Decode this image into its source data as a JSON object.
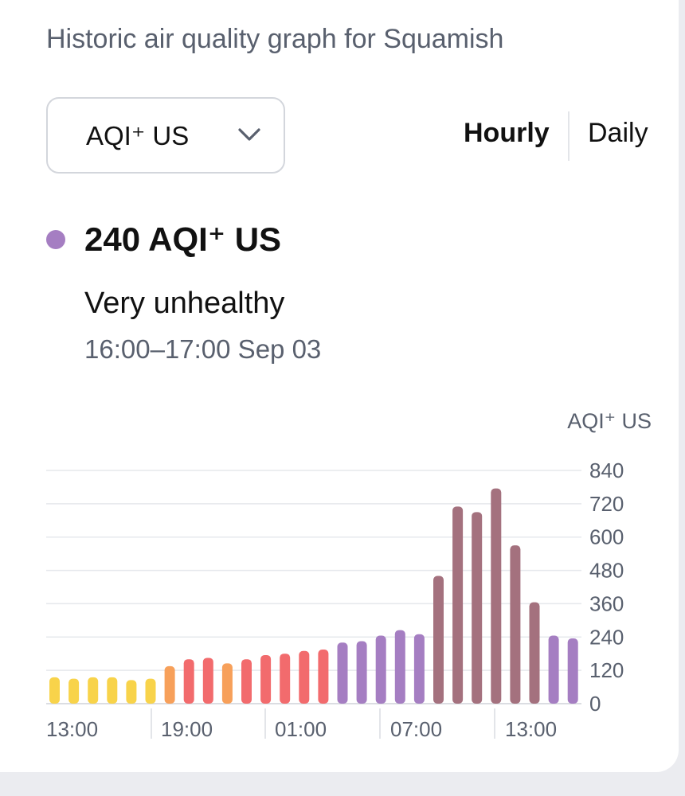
{
  "header": {
    "subtitle": "Historic air quality graph for Squamish"
  },
  "controls": {
    "pollutant": "AQI⁺ US",
    "toggle": {
      "hourly": "Hourly",
      "daily": "Daily",
      "selected": "Hourly"
    }
  },
  "selected": {
    "value_text": "240 AQI⁺ US",
    "level": "Very unhealthy",
    "time": "16:00–17:00 Sep 03",
    "dot_color": "#a57ec2"
  },
  "chart_data": {
    "type": "bar",
    "unit_label": "AQI⁺ US",
    "ylim": [
      0,
      840
    ],
    "y_ticks": [
      "840",
      "720",
      "600",
      "480",
      "360",
      "240",
      "120",
      "0"
    ],
    "x_ticks": [
      "13:00",
      "19:00",
      "01:00",
      "07:00",
      "13:00"
    ],
    "grid": true,
    "values": [
      95,
      90,
      95,
      95,
      85,
      90,
      135,
      160,
      165,
      145,
      160,
      175,
      180,
      190,
      195,
      220,
      225,
      245,
      265,
      250,
      460,
      710,
      690,
      775,
      570,
      365,
      245,
      235
    ],
    "colors": [
      "#f8d34a",
      "#f8d34a",
      "#f8d34a",
      "#f8d34a",
      "#f8d34a",
      "#f8d34a",
      "#f7a05a",
      "#f26b6d",
      "#f26b6d",
      "#f7a05a",
      "#f26b6d",
      "#f26b6d",
      "#f26b6d",
      "#f26b6d",
      "#f26b6d",
      "#a57ec2",
      "#a57ec2",
      "#a57ec2",
      "#a57ec2",
      "#a57ec2",
      "#a4717e",
      "#a4717e",
      "#a4717e",
      "#a4717e",
      "#a4717e",
      "#a4717e",
      "#a57ec2",
      "#a57ec2"
    ]
  }
}
